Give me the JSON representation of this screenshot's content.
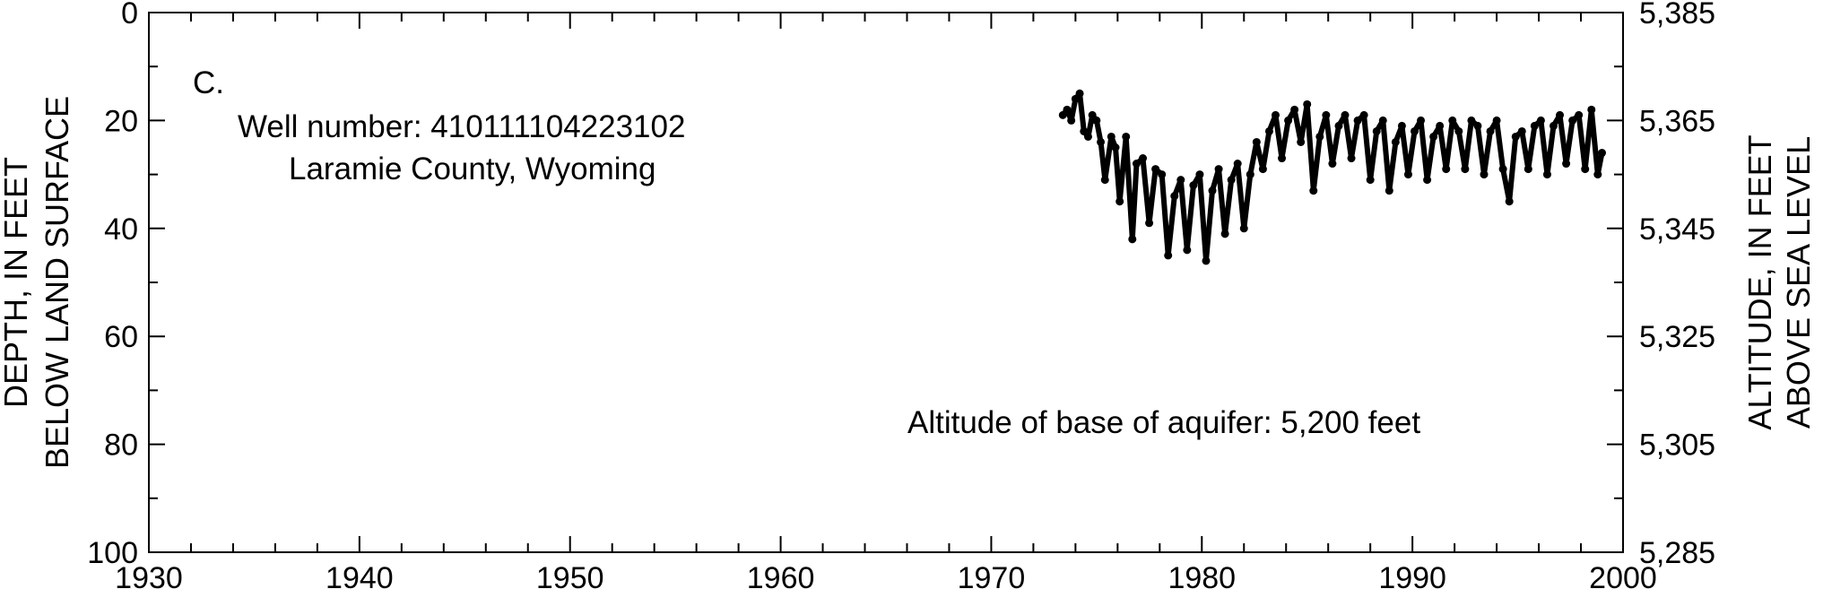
{
  "chart_data": {
    "type": "line",
    "panel_label": "C.",
    "well_label": "Well number: 410111104223102",
    "location_label": "Laramie County, Wyoming",
    "base_note": "Altitude of base of aquifer: 5,200 feet",
    "ylabel_left_line1": "DEPTH, IN FEET",
    "ylabel_left_line2": "BELOW LAND SURFACE",
    "ylabel_right_line1": "ALTITUDE, IN FEET",
    "ylabel_right_line2": "ABOVE SEA LEVEL",
    "xlim": [
      1930,
      2000
    ],
    "x_ticks": [
      "1930",
      "1940",
      "1950",
      "1960",
      "1970",
      "1980",
      "1990",
      "2000"
    ],
    "ylim_depth": [
      0,
      100
    ],
    "y_inverted": true,
    "y_left_ticks": [
      "0",
      "20",
      "40",
      "60",
      "80",
      "100"
    ],
    "y_right_ticks": [
      "5,385",
      "5,365",
      "5,345",
      "5,325",
      "5,305",
      "5,285"
    ],
    "grid": false,
    "series": [
      {
        "x": [
          1973.4,
          1973.6,
          1973.8,
          1974.0,
          1974.2,
          1974.4,
          1974.6,
          1974.8,
          1975.0,
          1975.2,
          1975.4,
          1975.7,
          1975.9,
          1976.1,
          1976.4,
          1976.7,
          1976.9,
          1977.2,
          1977.5,
          1977.8,
          1978.1,
          1978.4,
          1978.7,
          1979.0,
          1979.3,
          1979.6,
          1979.9,
          1980.2,
          1980.5,
          1980.8,
          1981.1,
          1981.4,
          1981.7,
          1982.0,
          1982.3,
          1982.6,
          1982.9,
          1983.2,
          1983.5,
          1983.8,
          1984.1,
          1984.4,
          1984.7,
          1985.0,
          1985.3,
          1985.6,
          1985.9,
          1986.2,
          1986.5,
          1986.8,
          1987.1,
          1987.4,
          1987.7,
          1988.0,
          1988.3,
          1988.6,
          1988.9,
          1989.2,
          1989.5,
          1989.8,
          1990.1,
          1990.4,
          1990.7,
          1991.0,
          1991.3,
          1991.6,
          1991.9,
          1992.2,
          1992.5,
          1992.8,
          1993.1,
          1993.4,
          1993.7,
          1994.0,
          1994.3,
          1994.6,
          1994.9,
          1995.2,
          1995.5,
          1995.8,
          1996.1,
          1996.4,
          1996.7,
          1997.0,
          1997.3,
          1997.6,
          1997.9,
          1998.2,
          1998.5,
          1998.8,
          1999.0
        ],
        "y": [
          19,
          18,
          20,
          16,
          15,
          22,
          23,
          19,
          20,
          24,
          31,
          23,
          25,
          35,
          23,
          42,
          28,
          27,
          39,
          29,
          30,
          45,
          34,
          31,
          44,
          32,
          30,
          46,
          33,
          29,
          41,
          31,
          28,
          40,
          30,
          24,
          29,
          22,
          19,
          27,
          20,
          18,
          24,
          17,
          33,
          23,
          19,
          28,
          21,
          19,
          27,
          20,
          19,
          31,
          22,
          20,
          33,
          24,
          21,
          30,
          22,
          20,
          31,
          23,
          21,
          29,
          20,
          22,
          29,
          20,
          21,
          30,
          22,
          20,
          29,
          35,
          23,
          22,
          29,
          21,
          20,
          30,
          21,
          19,
          28,
          20,
          19,
          29,
          18,
          30,
          26
        ]
      }
    ]
  }
}
